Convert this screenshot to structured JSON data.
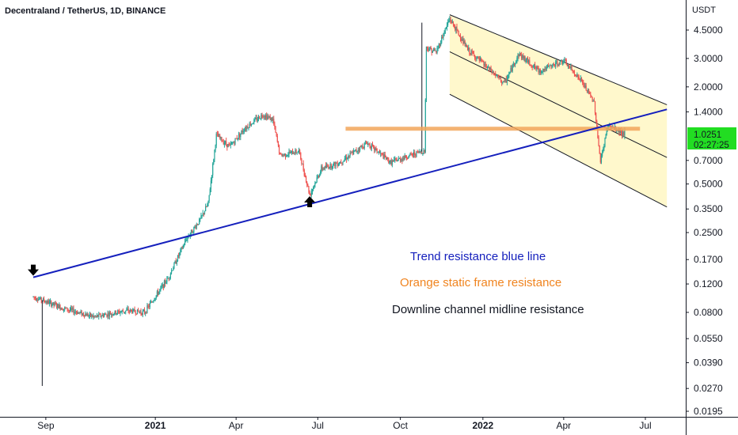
{
  "header": {
    "title": "Decentraland / TetherUS, 1D, BINANCE"
  },
  "chart_data": {
    "type": "candlestick",
    "symbol": "Decentraland / TetherUS",
    "interval": "1D",
    "exchange": "BINANCE",
    "y_scale": "log",
    "y_unit": "USDT",
    "ylim": [
      0.0195,
      5.5
    ],
    "y_ticks": [
      {
        "label": "4.5000",
        "value": 4.5
      },
      {
        "label": "3.0000",
        "value": 3.0
      },
      {
        "label": "2.0000",
        "value": 2.0
      },
      {
        "label": "1.4000",
        "value": 1.4
      },
      {
        "label": "0.7000",
        "value": 0.7
      },
      {
        "label": "0.5000",
        "value": 0.5
      },
      {
        "label": "0.3500",
        "value": 0.35
      },
      {
        "label": "0.2500",
        "value": 0.25
      },
      {
        "label": "0.1700",
        "value": 0.17
      },
      {
        "label": "0.1200",
        "value": 0.12
      },
      {
        "label": "0.0800",
        "value": 0.08
      },
      {
        "label": "0.0550",
        "value": 0.055
      },
      {
        "label": "0.0390",
        "value": 0.039
      },
      {
        "label": "0.0270",
        "value": 0.027
      },
      {
        "label": "0.0195",
        "value": 0.0195
      }
    ],
    "x_ticks": [
      {
        "label": "Sep",
        "date": "2020-09-01",
        "bold": false
      },
      {
        "label": "2021",
        "date": "2021-01-01",
        "bold": true
      },
      {
        "label": "Apr",
        "date": "2021-04-01",
        "bold": false
      },
      {
        "label": "Jul",
        "date": "2021-07-01",
        "bold": false
      },
      {
        "label": "Oct",
        "date": "2021-10-01",
        "bold": false
      },
      {
        "label": "2022",
        "date": "2022-01-01",
        "bold": true
      },
      {
        "label": "Apr",
        "date": "2022-04-01",
        "bold": false
      },
      {
        "label": "Jul",
        "date": "2022-07-01",
        "bold": false
      }
    ],
    "price_path": [
      {
        "date": "2020-08-18",
        "price": 0.1
      },
      {
        "date": "2020-09-20",
        "price": 0.085
      },
      {
        "date": "2020-10-25",
        "price": 0.075
      },
      {
        "date": "2020-11-30",
        "price": 0.082
      },
      {
        "date": "2020-12-20",
        "price": 0.08
      },
      {
        "date": "2021-01-15",
        "price": 0.13
      },
      {
        "date": "2021-02-05",
        "price": 0.23
      },
      {
        "date": "2021-02-20",
        "price": 0.3
      },
      {
        "date": "2021-03-01",
        "price": 0.38
      },
      {
        "date": "2021-03-10",
        "price": 1.0
      },
      {
        "date": "2021-03-25",
        "price": 0.85
      },
      {
        "date": "2021-04-10",
        "price": 1.1
      },
      {
        "date": "2021-05-01",
        "price": 1.35
      },
      {
        "date": "2021-05-12",
        "price": 1.25
      },
      {
        "date": "2021-05-20",
        "price": 0.75
      },
      {
        "date": "2021-06-10",
        "price": 0.8
      },
      {
        "date": "2021-06-22",
        "price": 0.43
      },
      {
        "date": "2021-07-05",
        "price": 0.62
      },
      {
        "date": "2021-07-25",
        "price": 0.68
      },
      {
        "date": "2021-08-25",
        "price": 0.9
      },
      {
        "date": "2021-09-20",
        "price": 0.68
      },
      {
        "date": "2021-10-20",
        "price": 0.78
      },
      {
        "date": "2021-10-28",
        "price": 0.8
      },
      {
        "date": "2021-10-30",
        "price": 3.5
      },
      {
        "date": "2021-11-10",
        "price": 3.3
      },
      {
        "date": "2021-11-25",
        "price": 5.3
      },
      {
        "date": "2021-12-15",
        "price": 3.4
      },
      {
        "date": "2022-01-25",
        "price": 2.1
      },
      {
        "date": "2022-02-10",
        "price": 3.2
      },
      {
        "date": "2022-03-05",
        "price": 2.5
      },
      {
        "date": "2022-04-01",
        "price": 2.9
      },
      {
        "date": "2022-04-20",
        "price": 2.2
      },
      {
        "date": "2022-05-05",
        "price": 1.6
      },
      {
        "date": "2022-05-12",
        "price": 0.68
      },
      {
        "date": "2022-05-20",
        "price": 1.15
      },
      {
        "date": "2022-06-08",
        "price": 1.0251
      }
    ],
    "spikes": [
      {
        "date": "2020-08-28",
        "price": 0.028
      },
      {
        "date": "2021-10-25",
        "price": 5.0
      }
    ],
    "trend_line": {
      "name": "Trend resistance blue line",
      "color": "#1520bd",
      "points": [
        {
          "date": "2020-08-18",
          "price": 0.132
        },
        {
          "date": "2022-07-25",
          "price": 1.45
        }
      ]
    },
    "static_resistance": {
      "name": "Orange static frame resistance",
      "color": "#f2a65a",
      "price": 1.1,
      "from": "2021-08-01",
      "to": "2022-06-25"
    },
    "channel": {
      "name": "Downline channel midline resistance",
      "fill": "#fff8cc",
      "upper": [
        {
          "date": "2021-11-25",
          "price": 5.6
        },
        {
          "date": "2022-07-25",
          "price": 1.55
        }
      ],
      "mid": [
        {
          "date": "2021-11-25",
          "price": 3.3
        },
        {
          "date": "2022-07-25",
          "price": 0.73
        }
      ],
      "lower": [
        {
          "date": "2021-11-25",
          "price": 1.8
        },
        {
          "date": "2022-07-25",
          "price": 0.36
        }
      ]
    },
    "markers": [
      {
        "type": "arrow-down",
        "date": "2020-08-18",
        "price": 0.132
      },
      {
        "type": "arrow-up",
        "date": "2021-06-22",
        "price": 0.43
      }
    ],
    "current_price": {
      "value": "1.0251",
      "price": 1.0251,
      "countdown": "02:27:25",
      "color": "#22dd22"
    },
    "annotations": [
      {
        "text": "Trend resistance blue line",
        "color": "#1520bd"
      },
      {
        "text": "Orange static frame resistance",
        "color": "#f0841f"
      },
      {
        "text": "Downline channel midline resistance",
        "color": "#131722"
      }
    ],
    "colors": {
      "up": "#26a69a",
      "down": "#ef5350"
    }
  }
}
